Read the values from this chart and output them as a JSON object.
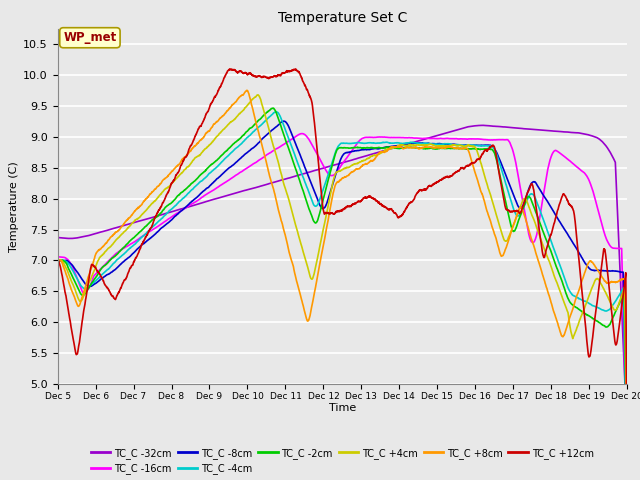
{
  "title": "Temperature Set C",
  "xlabel": "Time",
  "ylabel": "Temperature (C)",
  "ylim": [
    5.0,
    10.75
  ],
  "yticks": [
    5.0,
    5.5,
    6.0,
    6.5,
    7.0,
    7.5,
    8.0,
    8.5,
    9.0,
    9.5,
    10.0,
    10.5
  ],
  "num_points": 3600,
  "series_colors": {
    "TC_C -32cm": "#9900cc",
    "TC_C -16cm": "#ff00ff",
    "TC_C -8cm": "#0000cc",
    "TC_C -4cm": "#00cccc",
    "TC_C -2cm": "#00cc00",
    "TC_C +4cm": "#cccc00",
    "TC_C +8cm": "#ff9900",
    "TC_C +12cm": "#cc0000"
  },
  "wp_met_box_color": "#ffffcc",
  "wp_met_text_color": "#990000",
  "background_color": "#e8e8e8",
  "plot_background": "#e8e8e8",
  "grid_color": "#ffffff",
  "tick_labels": [
    "Dec 5",
    "Dec 6",
    "Dec 7",
    "Dec 8",
    "Dec 9",
    "Dec 10",
    "Dec 11",
    "Dec 12",
    "Dec 13",
    "Dec 14",
    "Dec 15",
    "Dec 16",
    "Dec 17",
    "Dec 18",
    "Dec 19",
    "Dec 20"
  ]
}
